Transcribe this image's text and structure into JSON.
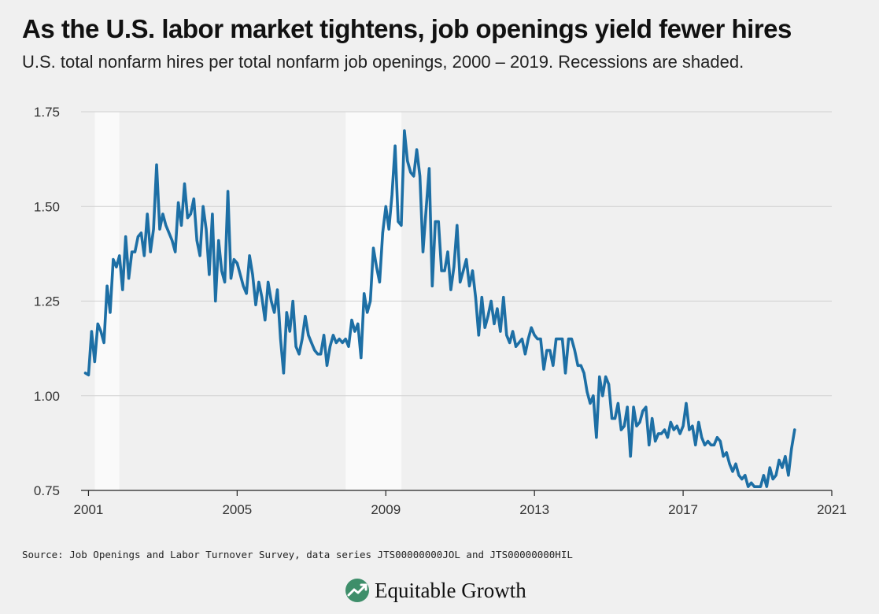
{
  "header": {
    "title": "As the U.S. labor market tightens, job openings yield fewer hires",
    "subtitle": "U.S. total nonfarm hires per total nonfarm job openings, 2000 – 2019. Recessions are shaded."
  },
  "footer": {
    "source": "Source: Job Openings and Labor Turnover Survey, data series JTS00000000JOL and JTS00000000HIL",
    "brand": "Equitable Growth",
    "logo_icon": "equitable-growth-logo-icon"
  },
  "chart_data": {
    "type": "line",
    "title": "",
    "xlabel": "",
    "ylabel": "",
    "xlim": [
      2000.8,
      2021
    ],
    "ylim": [
      0.75,
      1.75
    ],
    "x_ticks": [
      2001,
      2005,
      2009,
      2013,
      2017,
      2021
    ],
    "x_tick_labels": [
      "2001",
      "2005",
      "2009",
      "2013",
      "2017",
      "2021"
    ],
    "y_ticks": [
      0.75,
      1.0,
      1.25,
      1.5,
      1.75
    ],
    "y_tick_labels": [
      "0.75",
      "1.00",
      "1.25",
      "1.50",
      "1.75"
    ],
    "grid": true,
    "line_color": "#1d6fa5",
    "recession_color": "#fafafa",
    "recessions": [
      [
        2001.17,
        2001.83
      ],
      [
        2007.92,
        2009.42
      ]
    ],
    "series": [
      {
        "x_start": 2000.917,
        "x_step": 0.08333,
        "values": [
          1.06,
          1.055,
          1.17,
          1.09,
          1.19,
          1.17,
          1.14,
          1.29,
          1.22,
          1.36,
          1.34,
          1.37,
          1.28,
          1.42,
          1.31,
          1.38,
          1.38,
          1.42,
          1.43,
          1.37,
          1.48,
          1.38,
          1.44,
          1.61,
          1.44,
          1.48,
          1.45,
          1.43,
          1.41,
          1.38,
          1.51,
          1.45,
          1.56,
          1.47,
          1.48,
          1.52,
          1.41,
          1.37,
          1.5,
          1.44,
          1.32,
          1.48,
          1.25,
          1.41,
          1.33,
          1.3,
          1.54,
          1.31,
          1.36,
          1.35,
          1.32,
          1.29,
          1.27,
          1.37,
          1.32,
          1.24,
          1.3,
          1.26,
          1.2,
          1.3,
          1.25,
          1.22,
          1.28,
          1.15,
          1.06,
          1.22,
          1.17,
          1.25,
          1.13,
          1.11,
          1.15,
          1.21,
          1.16,
          1.14,
          1.12,
          1.11,
          1.11,
          1.16,
          1.08,
          1.13,
          1.16,
          1.14,
          1.15,
          1.14,
          1.15,
          1.13,
          1.2,
          1.17,
          1.19,
          1.1,
          1.27,
          1.22,
          1.25,
          1.39,
          1.34,
          1.3,
          1.43,
          1.5,
          1.44,
          1.53,
          1.66,
          1.46,
          1.45,
          1.7,
          1.62,
          1.59,
          1.58,
          1.65,
          1.58,
          1.38,
          1.49,
          1.6,
          1.29,
          1.46,
          1.46,
          1.33,
          1.33,
          1.38,
          1.28,
          1.34,
          1.45,
          1.3,
          1.33,
          1.36,
          1.29,
          1.33,
          1.26,
          1.16,
          1.26,
          1.18,
          1.21,
          1.25,
          1.19,
          1.23,
          1.17,
          1.26,
          1.16,
          1.14,
          1.17,
          1.13,
          1.14,
          1.15,
          1.11,
          1.15,
          1.18,
          1.16,
          1.15,
          1.15,
          1.07,
          1.12,
          1.12,
          1.08,
          1.15,
          1.15,
          1.15,
          1.06,
          1.15,
          1.15,
          1.12,
          1.08,
          1.08,
          1.06,
          1.01,
          0.98,
          1.0,
          0.89,
          1.05,
          1.0,
          1.05,
          1.03,
          0.94,
          0.94,
          0.98,
          0.91,
          0.92,
          0.97,
          0.84,
          0.97,
          0.92,
          0.93,
          0.96,
          0.97,
          0.87,
          0.94,
          0.88,
          0.9,
          0.9,
          0.91,
          0.89,
          0.93,
          0.91,
          0.92,
          0.9,
          0.92,
          0.98,
          0.91,
          0.92,
          0.87,
          0.93,
          0.89,
          0.87,
          0.88,
          0.87,
          0.87,
          0.89,
          0.88,
          0.84,
          0.85,
          0.82,
          0.8,
          0.82,
          0.79,
          0.78,
          0.79,
          0.76,
          0.77,
          0.76,
          0.76,
          0.76,
          0.79,
          0.76,
          0.81,
          0.78,
          0.79,
          0.83,
          0.81,
          0.84,
          0.79,
          0.86,
          0.91
        ]
      }
    ]
  }
}
